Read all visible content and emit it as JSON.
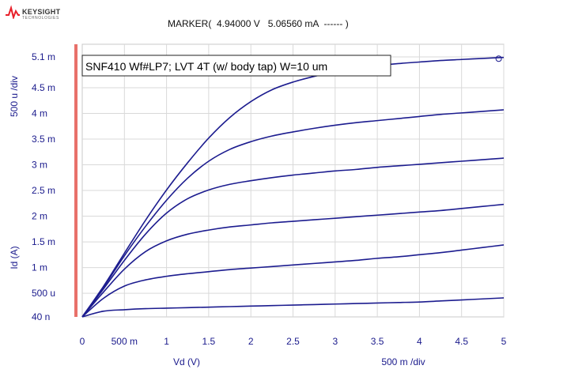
{
  "brand": {
    "name": "KEYSIGHT",
    "sub": "TECHNOLOGIES",
    "accent": "#e8202a"
  },
  "marker_text": "MARKER(  4.94000 V   5.06560 mA  ------ )",
  "colors": {
    "curve": "#1c1c8f",
    "axis_text": "#1a1a8c",
    "grid": "#d9d9d9",
    "left_bar": "#e8706a"
  },
  "chart_data": {
    "type": "line",
    "title": "SNF410 Wf#LP7; LVT 4T (w/ body tap) W=10 um",
    "xlabel": "Vd (V)",
    "ylabel": "Id (A)",
    "x_div_label": "500 m /div",
    "y_div_label": "500 u /div",
    "x_unit": "V",
    "y_unit": "A",
    "xlim": [
      0,
      5
    ],
    "ylim": [
      4e-05,
      0.0051
    ],
    "x_ticks": [
      0,
      0.5,
      1,
      1.5,
      2,
      2.5,
      3,
      3.5,
      4,
      4.5,
      5
    ],
    "x_tick_labels": [
      "0",
      "500 m",
      "1",
      "1.5",
      "2",
      "2.5",
      "3",
      "3.5",
      "4",
      "4.5",
      "5"
    ],
    "y_ticks": [
      4e-05,
      0.0005,
      0.001,
      0.0015,
      0.002,
      0.0025,
      0.003,
      0.0035,
      0.004,
      0.0045,
      0.0051
    ],
    "y_tick_labels": [
      "40 n",
      "500 u",
      "1 m",
      "1.5 m",
      "2 m",
      "2.5 m",
      "3 m",
      "3.5 m",
      "4 m",
      "4.5 m",
      "5.1 m"
    ],
    "grid": true,
    "x": [
      0,
      0.25,
      0.5,
      0.75,
      1,
      1.25,
      1.5,
      1.75,
      2,
      2.25,
      2.5,
      2.75,
      3,
      3.25,
      3.5,
      3.75,
      4,
      4.25,
      4.5,
      4.75,
      5
    ],
    "series": [
      {
        "values": [
          4e-05,
          0.00015,
          0.00018,
          0.0002,
          0.00021,
          0.00022,
          0.00023,
          0.00024,
          0.00025,
          0.00026,
          0.00027,
          0.00028,
          0.00029,
          0.0003,
          0.00031,
          0.00032,
          0.00033,
          0.00035,
          0.00037,
          0.00039,
          0.00041
        ]
      },
      {
        "values": [
          4e-05,
          0.0004,
          0.00064,
          0.00076,
          0.00083,
          0.00088,
          0.00092,
          0.00096,
          0.00099,
          0.00102,
          0.00105,
          0.00108,
          0.00111,
          0.00114,
          0.00118,
          0.00121,
          0.00125,
          0.00129,
          0.00134,
          0.00139,
          0.00144
        ]
      },
      {
        "values": [
          4e-05,
          0.00052,
          0.00097,
          0.00131,
          0.00152,
          0.00165,
          0.00173,
          0.00179,
          0.00183,
          0.00187,
          0.0019,
          0.00193,
          0.00196,
          0.00199,
          0.00202,
          0.00205,
          0.00208,
          0.00211,
          0.00215,
          0.00219,
          0.00223
        ]
      },
      {
        "values": [
          4e-05,
          0.00058,
          0.00114,
          0.00165,
          0.00206,
          0.00234,
          0.00251,
          0.00262,
          0.00269,
          0.00275,
          0.0028,
          0.00284,
          0.00288,
          0.00291,
          0.00295,
          0.00298,
          0.00301,
          0.00304,
          0.00307,
          0.0031,
          0.00313
        ]
      },
      {
        "values": [
          4e-05,
          0.00061,
          0.00123,
          0.0018,
          0.00231,
          0.00274,
          0.00307,
          0.0033,
          0.00345,
          0.00356,
          0.00364,
          0.00371,
          0.00377,
          0.00382,
          0.00386,
          0.0039,
          0.00394,
          0.00398,
          0.00401,
          0.00404,
          0.00407
        ]
      },
      {
        "values": [
          4e-05,
          0.00063,
          0.00128,
          0.00192,
          0.00251,
          0.00304,
          0.00352,
          0.00392,
          0.00423,
          0.00446,
          0.00461,
          0.00472,
          0.00481,
          0.00488,
          0.00493,
          0.00497,
          0.005,
          0.00503,
          0.00505,
          0.00507,
          0.00509
        ]
      }
    ],
    "marker": {
      "x": 4.94,
      "y": 0.0050656
    }
  }
}
